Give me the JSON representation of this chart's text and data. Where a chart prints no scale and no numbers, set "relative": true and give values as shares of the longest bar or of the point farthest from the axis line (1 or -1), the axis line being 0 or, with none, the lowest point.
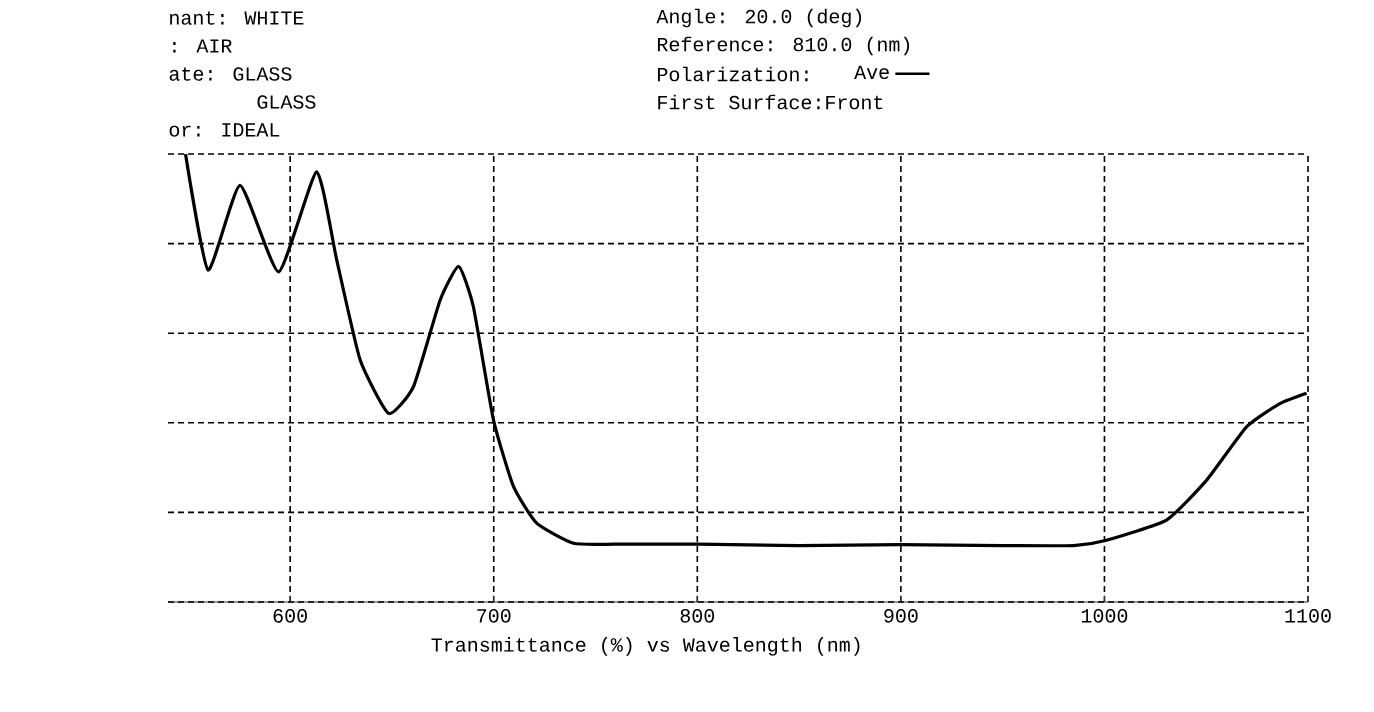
{
  "chart_data": {
    "type": "line",
    "xlabel": "Transmittance (%)   vs   Wavelength (nm)",
    "legend_title": "Polarization:",
    "legend": "top",
    "relative": true,
    "grid": true,
    "line_style": "solid",
    "marker": "none",
    "xlim": [
      540,
      1100
    ],
    "xticks": [
      600,
      700,
      800,
      900,
      1000,
      1100
    ],
    "annotations": [
      "nant: WHITE",
      ": AIR",
      "ate: GLASS",
      "GLASS",
      "or: IDEAL",
      "Angle: 20.0 (deg)",
      "Reference: 810.0 (nm)",
      "First Surface:Front"
    ],
    "series": [
      {
        "name": "Ave",
        "color": "#000000",
        "x": [
          548.6,
          559.7,
          575.4,
          594.4,
          613,
          622.9,
          634.4,
          648.4,
          660.6,
          673.7,
          682.8,
          690,
          699.9,
          709.7,
          721.1,
          739.2,
          760,
          800,
          850,
          900,
          950,
          984.8,
          1001,
          1030.5,
          1050.2,
          1069.8,
          1086.2,
          1099.3
        ],
        "values": [
          1.0,
          0.741,
          0.93,
          0.737,
          0.96,
          0.763,
          0.54,
          0.421,
          0.481,
          0.674,
          0.749,
          0.659,
          0.406,
          0.258,
          0.176,
          0.131,
          0.129,
          0.129,
          0.126,
          0.128,
          0.126,
          0.126,
          0.138,
          0.183,
          0.272,
          0.391,
          0.443,
          0.466
        ]
      }
    ]
  }
}
